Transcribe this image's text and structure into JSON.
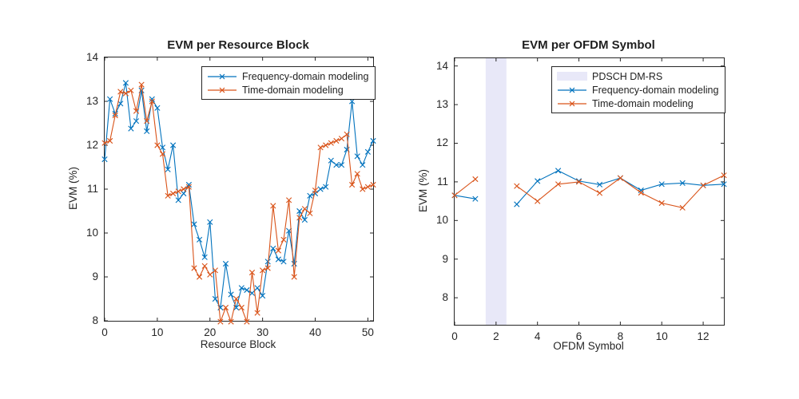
{
  "figure": {
    "background": "#FFFFFF"
  },
  "colors": {
    "axis": "#262626",
    "freq_series": "#0072BD",
    "time_series": "#D95319",
    "dmrs_patch": "#E8E8F8"
  },
  "chart_data": [
    {
      "id": "evm-per-resource-block",
      "type": "line",
      "title": "EVM per Resource Block",
      "xlabel": "Resource Block",
      "ylabel": "EVM (%)",
      "xlim": [
        0,
        51
      ],
      "ylim": [
        8,
        14
      ],
      "xticks": [
        0,
        10,
        20,
        30,
        40,
        50
      ],
      "yticks": [
        8,
        9,
        10,
        11,
        12,
        13,
        14
      ],
      "grid": false,
      "legend_position": "northeast",
      "marker": "x",
      "x": [
        0,
        1,
        2,
        3,
        4,
        5,
        6,
        7,
        8,
        9,
        10,
        11,
        12,
        13,
        14,
        15,
        16,
        17,
        18,
        19,
        20,
        21,
        22,
        23,
        24,
        25,
        26,
        27,
        28,
        29,
        30,
        31,
        32,
        33,
        34,
        35,
        36,
        37,
        38,
        39,
        40,
        41,
        42,
        43,
        44,
        45,
        46,
        47,
        48,
        49,
        50,
        51
      ],
      "series": [
        {
          "name": "Frequency-domain modeling",
          "color": "#0072BD",
          "values": [
            11.68,
            13.05,
            12.72,
            12.95,
            13.42,
            12.38,
            12.55,
            13.25,
            12.32,
            13.05,
            12.85,
            11.95,
            11.45,
            12.0,
            10.75,
            10.9,
            11.1,
            10.2,
            9.85,
            9.45,
            10.25,
            8.5,
            8.3,
            9.3,
            8.6,
            8.3,
            8.75,
            8.7,
            8.63,
            8.75,
            8.57,
            9.35,
            9.65,
            9.4,
            9.35,
            10.05,
            9.3,
            10.5,
            10.3,
            10.85,
            10.9,
            11.0,
            11.05,
            11.65,
            11.55,
            11.55,
            11.9,
            13.0,
            11.75,
            11.55,
            11.85,
            12.1
          ]
        },
        {
          "name": "Time-domain modeling",
          "color": "#D95319",
          "values": [
            12.05,
            12.1,
            12.68,
            13.22,
            13.18,
            13.25,
            12.78,
            13.38,
            12.55,
            13.0,
            12.0,
            11.8,
            10.85,
            10.9,
            10.95,
            11.0,
            11.05,
            9.2,
            9.0,
            9.25,
            9.05,
            9.15,
            7.98,
            8.3,
            7.98,
            8.5,
            8.3,
            7.98,
            9.1,
            8.18,
            9.15,
            9.2,
            10.62,
            9.6,
            9.85,
            10.75,
            9.0,
            10.35,
            10.55,
            10.45,
            10.97,
            11.95,
            12.0,
            12.05,
            12.1,
            12.15,
            12.25,
            11.1,
            11.35,
            11.0,
            11.05,
            11.1
          ]
        }
      ]
    },
    {
      "id": "evm-per-ofdm-symbol",
      "type": "line",
      "title": "EVM per OFDM Symbol",
      "xlabel": "OFDM Symbol",
      "ylabel": "EVM (%)",
      "xlim": [
        0,
        13
      ],
      "ylim": [
        7.3,
        14.2
      ],
      "xticks": [
        0,
        2,
        4,
        6,
        8,
        10,
        12
      ],
      "yticks": [
        8,
        9,
        10,
        11,
        12,
        13,
        14
      ],
      "grid": false,
      "legend_position": "northeast",
      "marker": "x",
      "highlight_region": {
        "label": "PDSCH DM-RS",
        "x_start": 1.5,
        "x_end": 2.5,
        "color": "#E8E8F8"
      },
      "x": [
        0,
        1,
        2,
        3,
        4,
        5,
        6,
        7,
        8,
        9,
        10,
        11,
        12,
        13
      ],
      "series": [
        {
          "name": "Frequency-domain modeling",
          "color": "#0072BD",
          "values": [
            10.65,
            10.56,
            null,
            10.42,
            11.02,
            11.29,
            11.02,
            10.93,
            11.1,
            10.78,
            10.94,
            10.97,
            10.91,
            10.94
          ]
        },
        {
          "name": "Time-domain modeling",
          "color": "#D95319",
          "values": [
            10.65,
            11.07,
            null,
            10.89,
            10.5,
            10.94,
            11.0,
            10.71,
            11.1,
            10.72,
            10.45,
            10.33,
            10.91,
            11.17
          ]
        }
      ]
    }
  ]
}
